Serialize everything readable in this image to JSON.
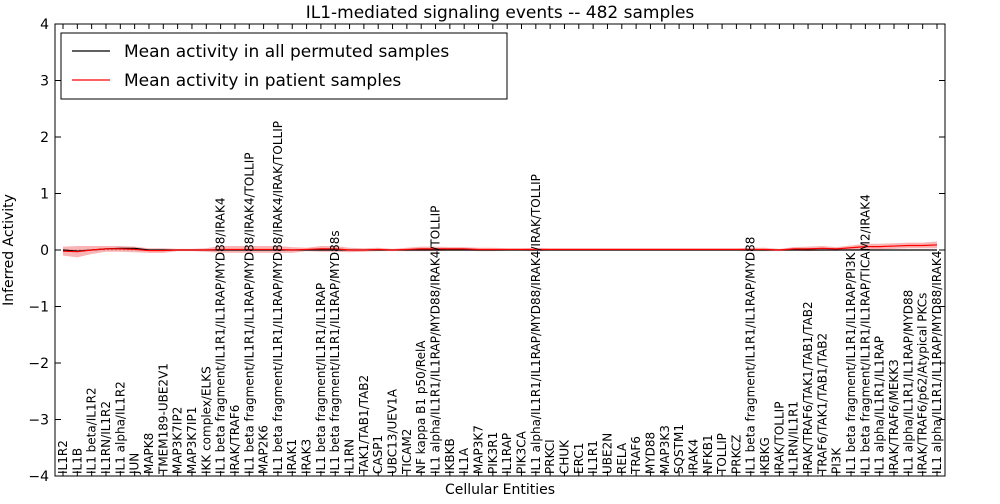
{
  "chart_data": {
    "type": "line",
    "title": "IL1-mediated signaling events -- 482 samples",
    "xlabel": "Cellular Entities",
    "ylabel": "Inferred Activity",
    "ylim": [
      -4,
      4
    ],
    "yticks": [
      -4,
      -3,
      -2,
      -1,
      0,
      1,
      2,
      3,
      4
    ],
    "legend_position": "top-left",
    "categories": [
      "IL1R2",
      "IL1B",
      "IL1 beta/IL1R2",
      "IL1RN/IL1R2",
      "IL1 alpha/IL1R2",
      "JUN",
      "MAPK8",
      "TMEM189-UBE2V1",
      "MAP3K7IP2",
      "MAP3K7IP1",
      "IKK complex/ELKS",
      "IL1 beta fragment/IL1R1/IL1RAP/MYD88/IRAK4",
      "IRAK/TRAF6",
      "IL1 beta fragment/IL1R1/IL1RAP/MYD88/IRAK4/TOLLIP",
      "MAP2K6",
      "IL1 beta fragment/IL1R1/IL1RAP/MYD88/IRAK4/IRAK/TOLLIP",
      "IRAK1",
      "IRAK3",
      "IL1 beta fragment/IL1R1/IL1RAP",
      "IL1 beta fragment/IL1R1/IL1RAP/MYD88s",
      "IL1RN",
      "TAK1/TAB1/TAB2",
      "CASP1",
      "UBC13/UEV1A",
      "TICAM2",
      "NF kappa B1 p50/RelA",
      "IL1 alpha/IL1R1/IL1RAP/MYD88/IRAK4/TOLLIP",
      "IKBKB",
      "IL1A",
      "MAP3K7",
      "PIK3R1",
      "IL1RAP",
      "PIK3CA",
      "IL1 alpha/IL1R1/IL1RAP/MYD88/IRAK4/IRAK/TOLLIP",
      "PRKCI",
      "CHUK",
      "ERC1",
      "IL1R1",
      "UBE2N",
      "RELA",
      "TRAF6",
      "MYD88",
      "MAP3K3",
      "SQSTM1",
      "IRAK4",
      "NFKB1",
      "TOLLIP",
      "PRKCZ",
      "IL1 beta fragment/IL1R1/IL1RAP/MYD88",
      "IKBKG",
      "IRAK/TOLLIP",
      "IL1RN/IL1R1",
      "IRAK/TRAF6/TAK1/TAB1/TAB2",
      "TRAF6/TAK1/TAB1/TAB2",
      "PI3K",
      "IL1 beta fragment/IL1R1/IL1RAP/PI3K",
      "IL1 beta fragment/IL1R1/IL1RAP/TICAM2/IRAK4",
      "IL1 alpha/IL1R1/IL1RAP",
      "IRAK/TRAF6/MEKK3",
      "IL1 alpha/IL1R1/IL1RAP/MYD88",
      "IRAK/TRAF6/p62/Atypical PKCs",
      "IL1 alpha/IL1R1/IL1RAP/MYD88/IRAK4"
    ],
    "series": [
      {
        "name": "Mean activity in all permuted samples",
        "color": "#000000",
        "values": [
          0.0,
          -0.02,
          0.0,
          0.02,
          0.03,
          0.03,
          0.0,
          0.0,
          0.0,
          0.0,
          0.0,
          0.0,
          0.0,
          0.0,
          0.0,
          0.0,
          0.0,
          0.0,
          0.0,
          0.0,
          0.0,
          0.0,
          0.0,
          0.0,
          0.0,
          0.0,
          0.0,
          0.0,
          0.0,
          0.0,
          0.0,
          0.0,
          0.0,
          0.0,
          0.0,
          0.0,
          0.0,
          0.0,
          0.0,
          0.0,
          0.0,
          0.0,
          0.0,
          0.0,
          0.0,
          0.0,
          0.0,
          0.0,
          0.0,
          0.0,
          0.0,
          0.0,
          0.0,
          0.0,
          0.0,
          0.0,
          0.0,
          0.0,
          0.0,
          0.0,
          0.0,
          0.0
        ]
      },
      {
        "name": "Mean activity in patient samples",
        "color": "#ff0000",
        "band_color": "#f7a3a3",
        "values": [
          -0.02,
          -0.03,
          0.0,
          0.02,
          0.02,
          0.01,
          -0.01,
          -0.01,
          0.0,
          0.0,
          0.0,
          0.01,
          0.01,
          0.01,
          0.01,
          0.01,
          0.0,
          0.01,
          0.02,
          0.02,
          0.0,
          0.0,
          0.01,
          0.0,
          0.01,
          0.02,
          0.02,
          0.02,
          0.02,
          0.01,
          0.01,
          0.01,
          0.01,
          0.01,
          0.01,
          0.01,
          0.01,
          0.01,
          0.01,
          0.01,
          0.01,
          0.01,
          0.01,
          0.01,
          0.01,
          0.01,
          0.01,
          0.01,
          0.01,
          0.01,
          0.0,
          0.02,
          0.02,
          0.03,
          0.02,
          0.04,
          0.06,
          0.06,
          0.07,
          0.08,
          0.08,
          0.09
        ],
        "band_halfwidth": [
          0.08,
          0.1,
          0.07,
          0.05,
          0.05,
          0.05,
          0.04,
          0.04,
          0.02,
          0.02,
          0.03,
          0.06,
          0.06,
          0.06,
          0.06,
          0.06,
          0.05,
          0.03,
          0.05,
          0.05,
          0.04,
          0.03,
          0.03,
          0.02,
          0.03,
          0.04,
          0.04,
          0.03,
          0.03,
          0.03,
          0.03,
          0.02,
          0.02,
          0.03,
          0.02,
          0.02,
          0.02,
          0.02,
          0.02,
          0.02,
          0.02,
          0.02,
          0.02,
          0.02,
          0.02,
          0.02,
          0.02,
          0.02,
          0.03,
          0.03,
          0.02,
          0.03,
          0.04,
          0.04,
          0.03,
          0.04,
          0.05,
          0.05,
          0.05,
          0.05,
          0.05,
          0.06
        ]
      }
    ]
  }
}
